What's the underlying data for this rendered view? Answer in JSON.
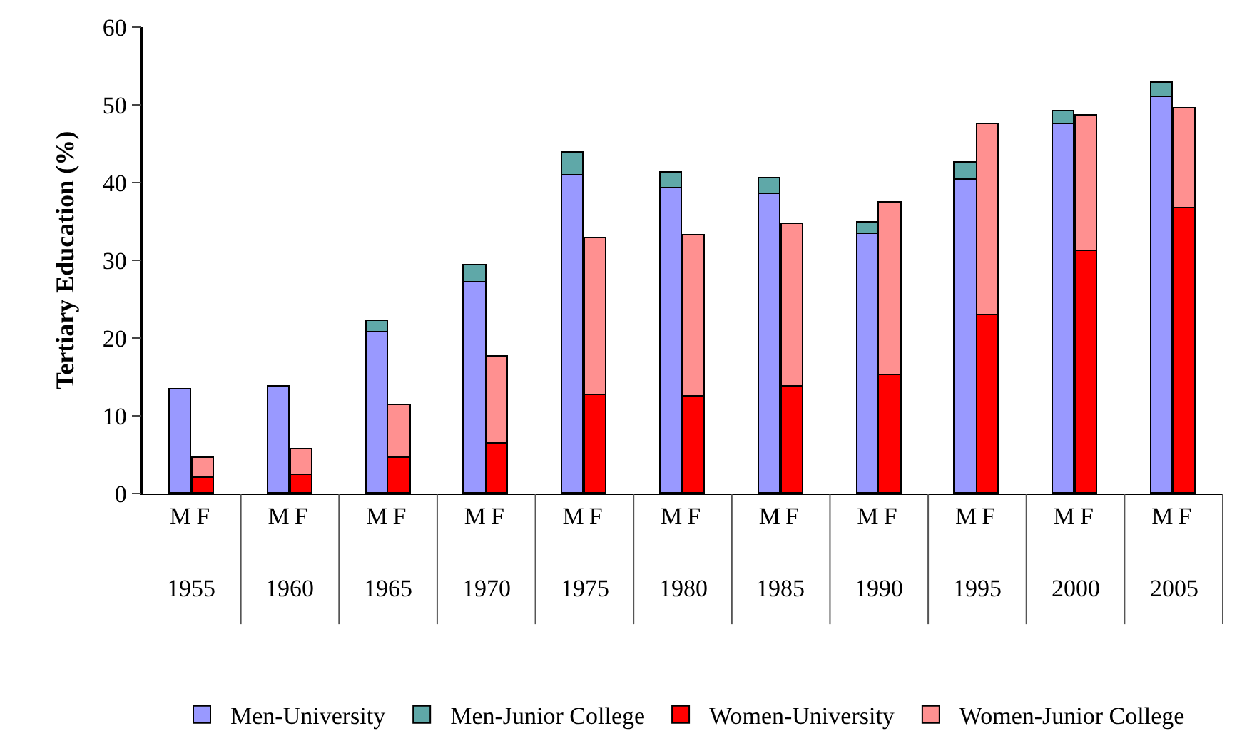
{
  "chart_data": {
    "type": "bar",
    "stacked": true,
    "ylabel": "Tertiary Education (%)",
    "categories": [
      "M",
      "F",
      "M",
      "F",
      "M",
      "F",
      "M",
      "F",
      "M",
      "F",
      "M",
      "F",
      "M",
      "F",
      "M",
      "F",
      "M",
      "F",
      "M",
      "F",
      "M",
      "F"
    ],
    "annotations": [
      "1955",
      "1960",
      "1965",
      "1970",
      "1975",
      "1980",
      "1985",
      "1990",
      "1995",
      "2000",
      "2005"
    ],
    "series": [
      {
        "name": "Men-University",
        "color": "#9999ff",
        "values": [
          13.4,
          null,
          13.8,
          null,
          20.8,
          null,
          27.2,
          null,
          40.9,
          null,
          39.2,
          null,
          38.5,
          null,
          33.4,
          null,
          40.4,
          null,
          47.5,
          null,
          51.0,
          null
        ]
      },
      {
        "name": "Men-Junior College",
        "color": "#5fa8a8",
        "values": [
          null,
          null,
          null,
          null,
          1.4,
          null,
          2.1,
          null,
          2.9,
          null,
          2.1,
          null,
          2.1,
          null,
          1.5,
          null,
          2.1,
          null,
          1.7,
          null,
          1.9,
          null
        ]
      },
      {
        "name": "Women-University",
        "color": "#ff0000",
        "values": [
          null,
          2.1,
          null,
          2.3,
          null,
          4.6,
          null,
          6.4,
          null,
          12.7,
          null,
          12.4,
          null,
          13.8,
          null,
          15.2,
          null,
          22.9,
          null,
          31.2,
          null,
          36.7
        ]
      },
      {
        "name": "Women-Junior College",
        "color": "#ff9090",
        "values": [
          null,
          2.5,
          null,
          3.3,
          null,
          6.7,
          null,
          11.2,
          null,
          20.1,
          null,
          20.8,
          null,
          20.8,
          null,
          22.2,
          null,
          24.7,
          null,
          17.5,
          null,
          12.9
        ]
      }
    ],
    "ylim": [
      0,
      60
    ],
    "yticks": [
      0,
      10,
      20,
      30,
      40,
      50,
      60
    ],
    "legend": "bottom"
  }
}
